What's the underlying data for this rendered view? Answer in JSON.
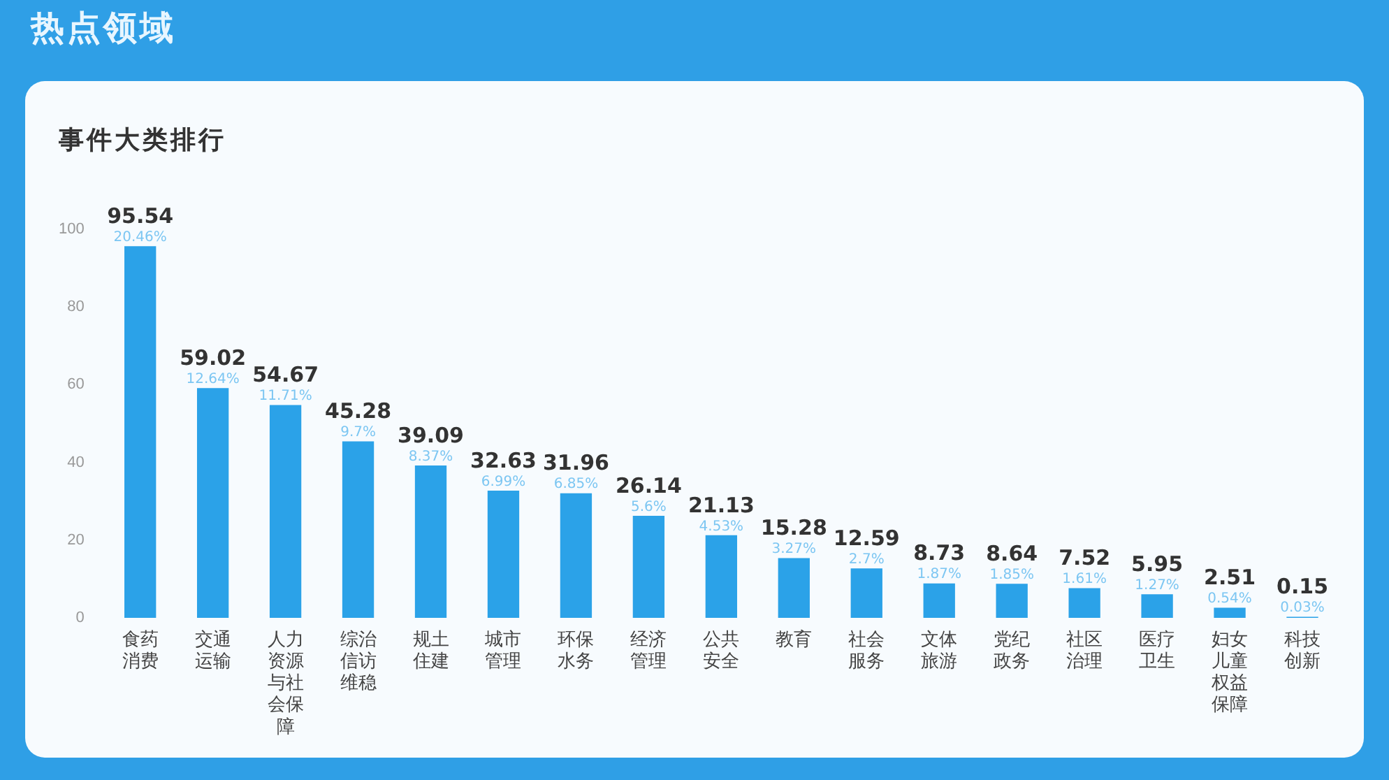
{
  "chart_data": {
    "type": "bar",
    "title": "热点领域",
    "subtitle": "事件大类排行",
    "categories": [
      "食药消费",
      "交通运输",
      "人力资源与社会保障",
      "综治信访维稳",
      "规土住建",
      "城市管理",
      "环保水务",
      "经济管理",
      "公共安全",
      "教育",
      "社会服务",
      "文体旅游",
      "党纪政务",
      "社区治理",
      "医疗卫生",
      "妇女儿童权益保障",
      "科技创新"
    ],
    "values": [
      95.54,
      59.02,
      54.67,
      45.28,
      39.09,
      32.63,
      31.96,
      26.14,
      21.13,
      15.28,
      12.59,
      8.73,
      8.64,
      7.52,
      5.95,
      2.51,
      0.15
    ],
    "color": "#2ba2e8",
    "ylim": [
      0,
      100
    ],
    "yticks": [
      0,
      20,
      40,
      60,
      80,
      100
    ],
    "grid": false,
    "legend": false,
    "data_labels": true,
    "annotations": [
      {
        "text": "20.46%",
        "x": "食药消费",
        "y": 95.54
      },
      {
        "text": "12.64%",
        "x": "交通运输",
        "y": 59.02
      },
      {
        "text": "11.71%",
        "x": "人力资源与社会保障",
        "y": 54.67
      },
      {
        "text": "9.7%",
        "x": "综治信访维稳",
        "y": 45.28
      },
      {
        "text": "8.37%",
        "x": "规土住建",
        "y": 39.09
      },
      {
        "text": "6.99%",
        "x": "城市管理",
        "y": 32.63
      },
      {
        "text": "6.85%",
        "x": "环保水务",
        "y": 31.96
      },
      {
        "text": "5.6%",
        "x": "经济管理",
        "y": 26.14
      },
      {
        "text": "4.53%",
        "x": "公共安全",
        "y": 21.13
      },
      {
        "text": "3.27%",
        "x": "教育",
        "y": 15.28
      },
      {
        "text": "2.7%",
        "x": "社会服务",
        "y": 12.59
      },
      {
        "text": "1.87%",
        "x": "文体旅游",
        "y": 8.73
      },
      {
        "text": "1.85%",
        "x": "党纪政务",
        "y": 8.64
      },
      {
        "text": "1.61%",
        "x": "社区治理",
        "y": 7.52
      },
      {
        "text": "1.27%",
        "x": "医疗卫生",
        "y": 5.95
      },
      {
        "text": "0.54%",
        "x": "妇女儿童权益保障",
        "y": 2.51
      },
      {
        "text": "0.03%",
        "x": "科技创新",
        "y": 0.15
      }
    ]
  }
}
